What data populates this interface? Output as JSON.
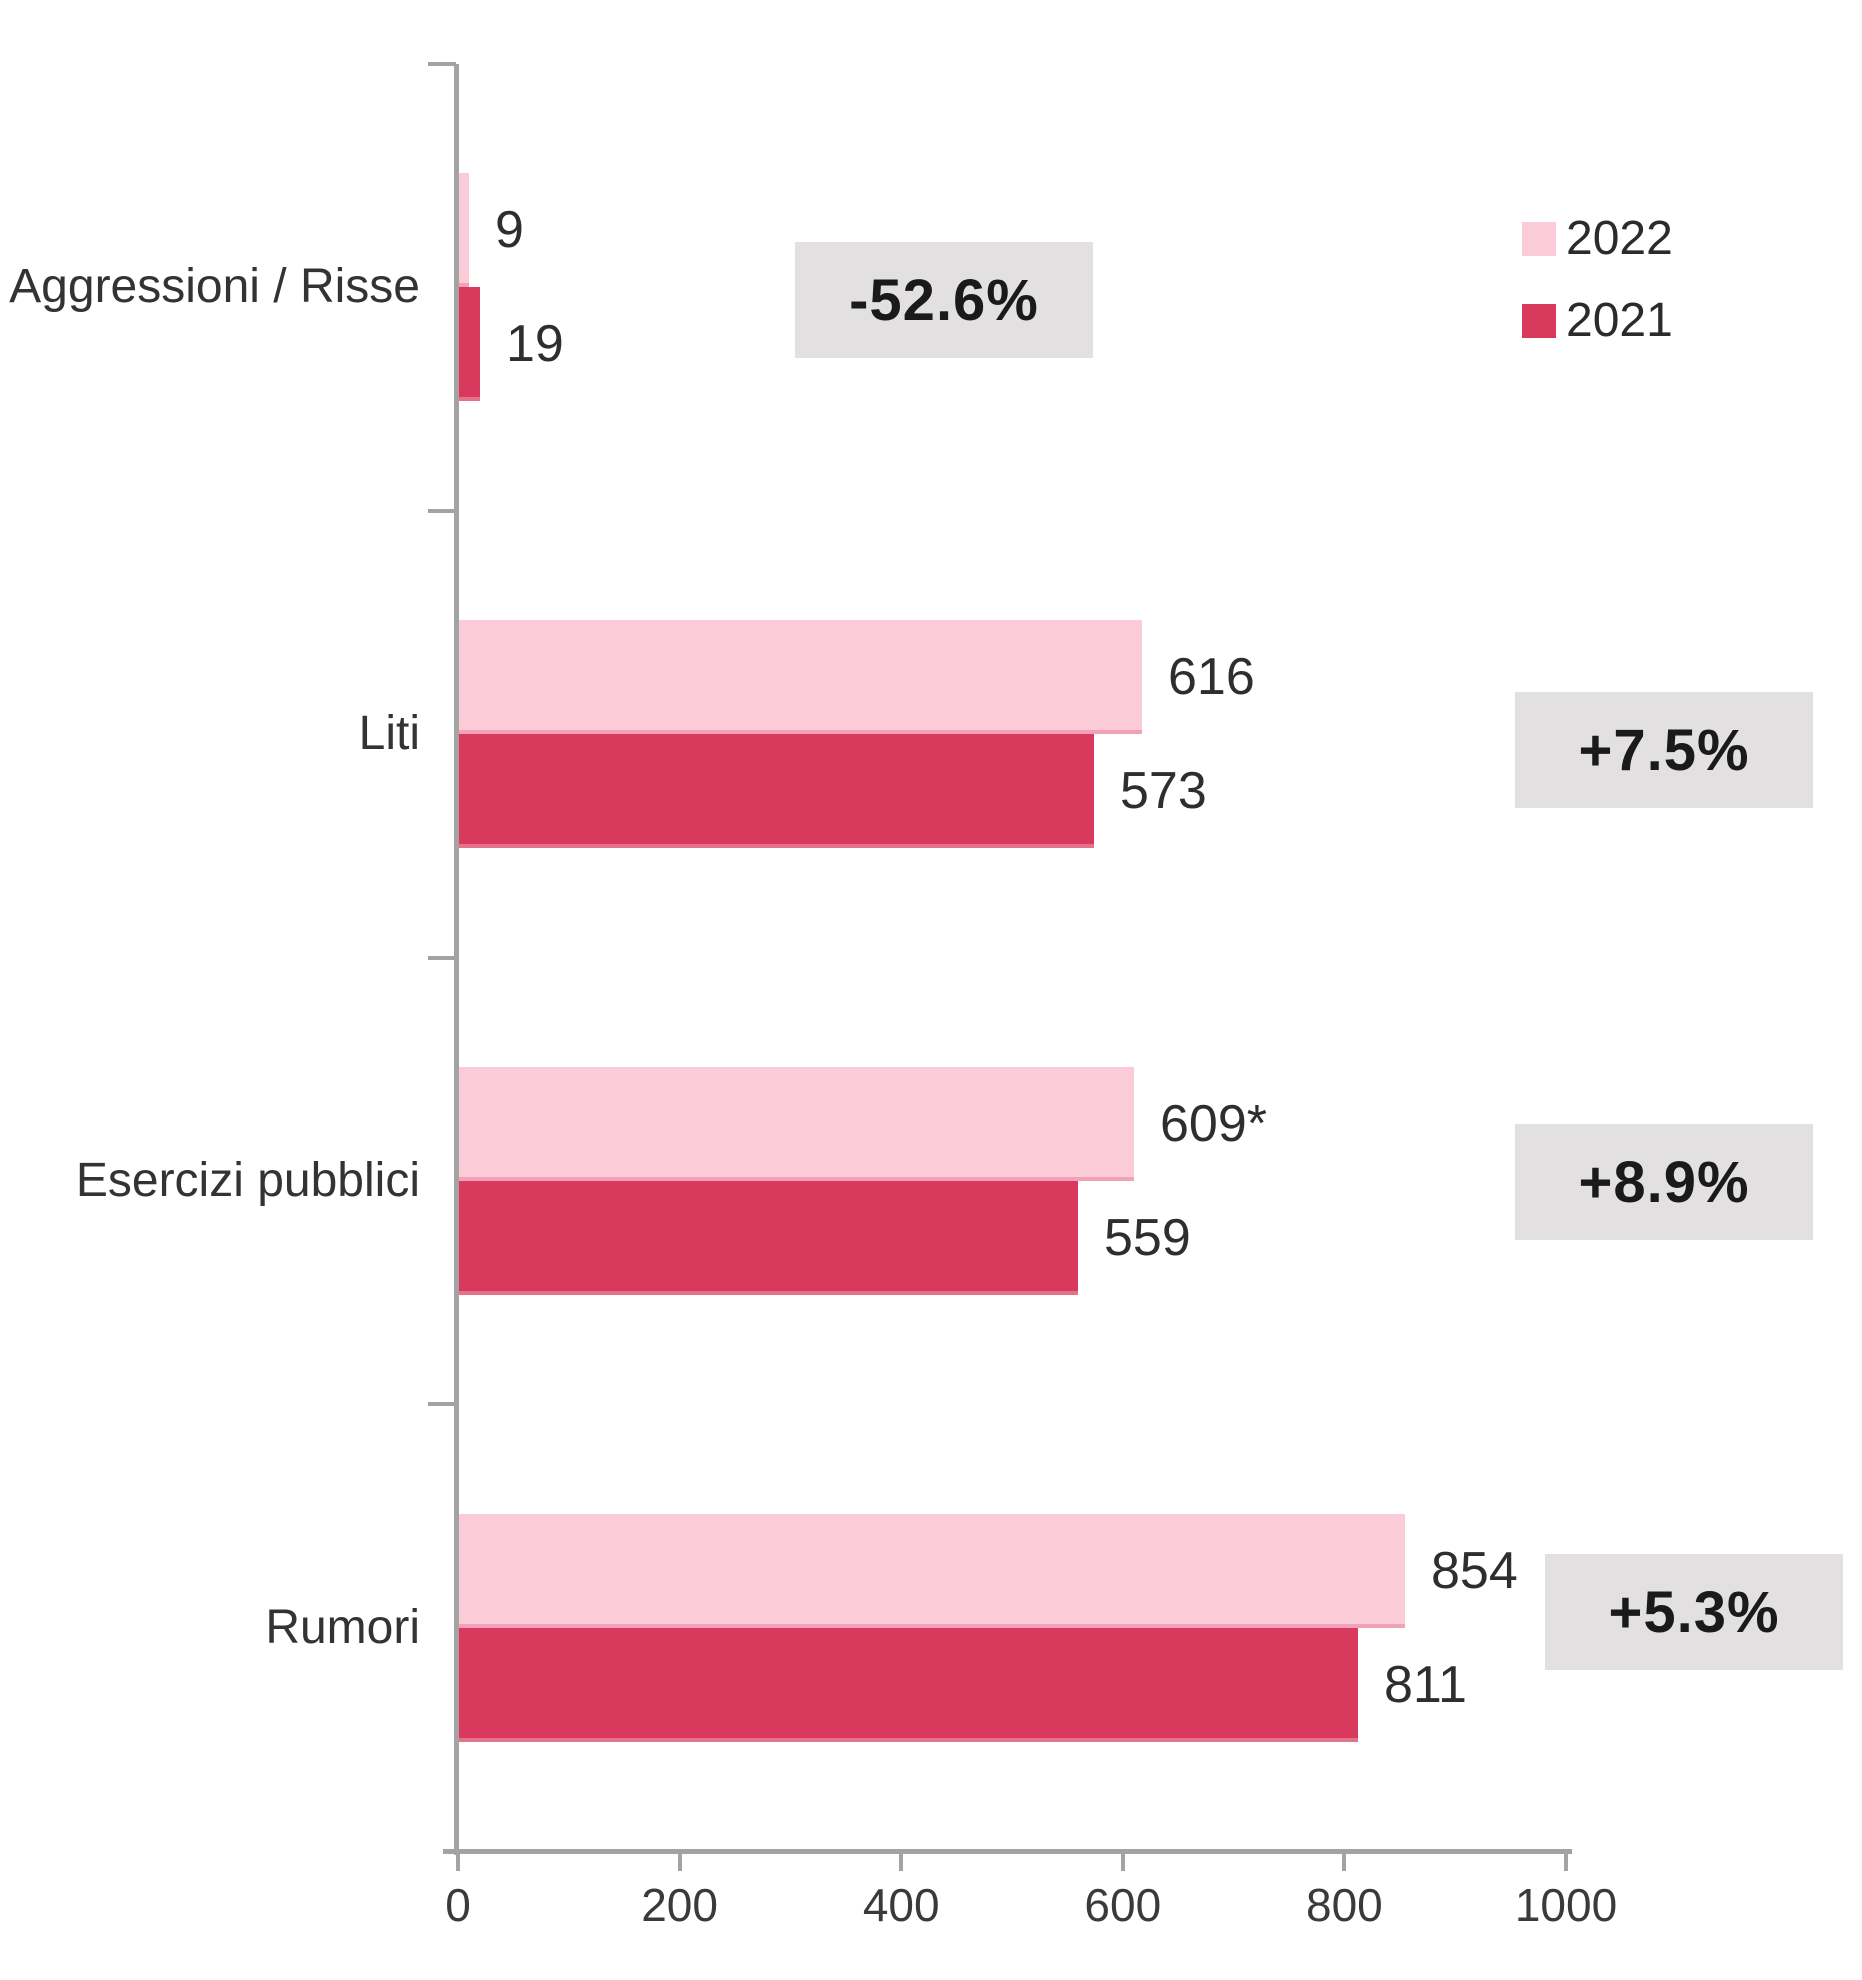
{
  "chart_data": {
    "type": "bar",
    "orientation": "horizontal",
    "title": "",
    "xlabel": "",
    "ylabel": "",
    "categories": [
      "Aggressioni / Risse",
      "Liti",
      "Esercizi pubblici",
      "Rumori"
    ],
    "series": [
      {
        "name": "2022",
        "color": "#fbccd7",
        "values": [
          9,
          616,
          609,
          854
        ],
        "value_labels": [
          "9",
          "616",
          "609*",
          "854"
        ]
      },
      {
        "name": "2021",
        "color": "#d9395c",
        "values": [
          19,
          573,
          559,
          811
        ],
        "value_labels": [
          "19",
          "573",
          "559",
          "811"
        ]
      }
    ],
    "change_badges": [
      "-52.6%",
      "+7.5%",
      "+8.9%",
      "+5.3%"
    ],
    "xlim": [
      0,
      1000
    ],
    "x_ticks": [
      0,
      200,
      400,
      600,
      800,
      1000
    ],
    "x_tick_labels": [
      "0",
      "200",
      "400",
      "600",
      "800",
      "1000"
    ],
    "grid": false,
    "legend_position": "top-right",
    "colors": {
      "series_2022": "#fbccd7",
      "series_2021": "#d9395c",
      "badge_background": "#e2e0e0",
      "badge_text": "#1a1a1a",
      "axis": "#a3a3a3",
      "label_text": "#2e2e2e"
    }
  }
}
